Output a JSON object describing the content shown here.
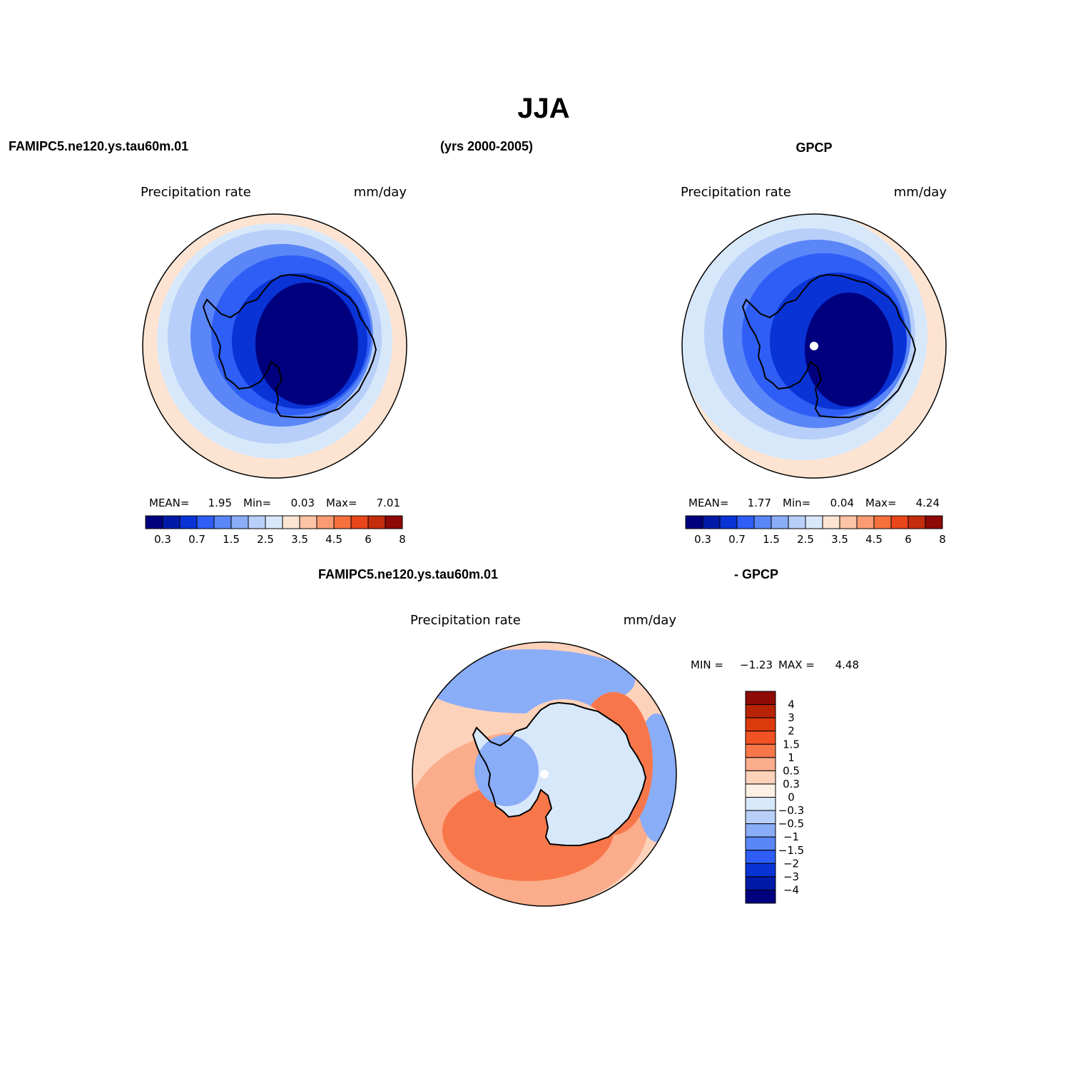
{
  "figure": {
    "title": "JJA",
    "years": "(yrs 2000-2005)",
    "panel_top_left": {
      "case_name": "FAMIPC5.ne120.ys.tau60m.01",
      "variable": "Precipitation rate",
      "units": "mm/day",
      "mean_label": "MEAN=",
      "mean": "1.95",
      "min_label": "Min=",
      "min": "0.03",
      "max_label": "Max=",
      "max": "7.01"
    },
    "panel_top_right": {
      "case_name": "GPCP",
      "variable": "Precipitation rate",
      "units": "mm/day",
      "mean_label": "MEAN=",
      "mean": "1.77",
      "min_label": "Min=",
      "min": "0.04",
      "max_label": "Max=",
      "max": "4.24"
    },
    "panel_bottom": {
      "case_name": "FAMIPC5.ne120.ys.tau60m.01",
      "diff_name": "- GPCP",
      "variable": "Precipitation rate",
      "units": "mm/day",
      "min_label": "MIN =",
      "min": "−1.23",
      "max_label": "MAX =",
      "max": "4.48"
    },
    "colorbar_horizontal": {
      "colors": [
        "#00007f",
        "#001aa8",
        "#0a33d6",
        "#2e5ef5",
        "#5a86f7",
        "#8aadf8",
        "#b8cff9",
        "#d8e8fb",
        "#fde4d2",
        "#fcc3a5",
        "#f99b73",
        "#f6703d",
        "#e8461a",
        "#c42d0c",
        "#8e0a06"
      ],
      "labels": [
        "0.3",
        "0.7",
        "1.5",
        "2.5",
        "3.5",
        "4.5",
        "6",
        "8"
      ]
    },
    "colorbar_vertical": {
      "colors": [
        "#8e0a06",
        "#b82305",
        "#dc3a0c",
        "#f05223",
        "#f8774a",
        "#fbac8a",
        "#fdd2bb",
        "#fef0e4",
        "#d8e8fb",
        "#b8cff9",
        "#8aadf8",
        "#5a86f7",
        "#2e5ef5",
        "#0a33d6",
        "#001aa8",
        "#00007f"
      ],
      "labels": [
        "4",
        "3",
        "2",
        "1.5",
        "1",
        "0.5",
        "0.3",
        "0",
        "−0.3",
        "−0.5",
        "−1",
        "−1.5",
        "−2",
        "−3",
        "−4"
      ]
    },
    "map_colors": {
      "ocean_far": "#fde4d2",
      "ocean_mid": "#d8e8fb",
      "ocean_near": "#b8cff9",
      "ring_blue": "#5a86f7",
      "ring_dark": "#2e5ef5",
      "interior": "#0a33d6",
      "core": "#00007f",
      "diff_warm": "#f8774a",
      "diff_light": "#fbac8a",
      "diff_pale": "#fdd2bb",
      "diff_cool": "#d8e8fb",
      "diff_blue": "#8aadf8"
    }
  }
}
